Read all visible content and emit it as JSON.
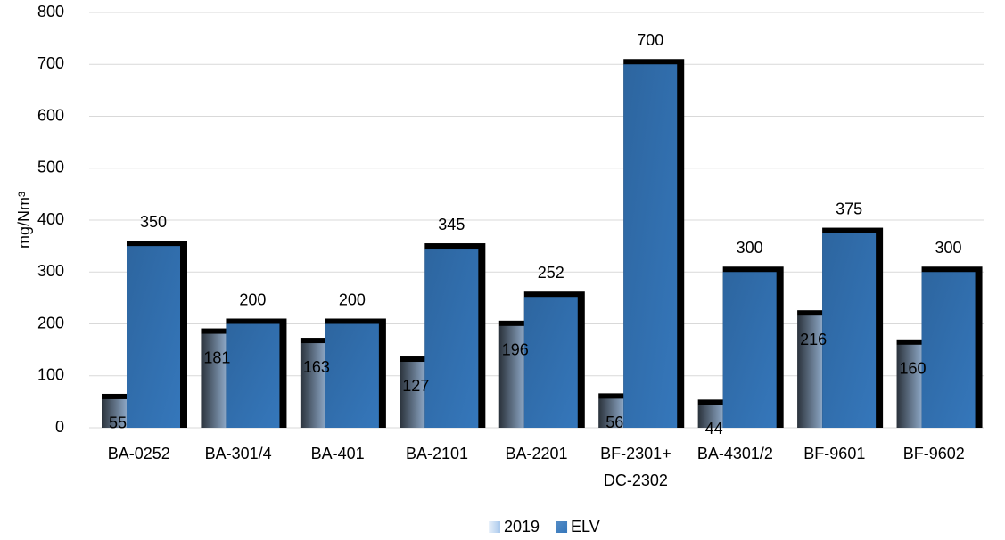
{
  "chart_data": {
    "type": "bar",
    "y_label": "mg/Nm³",
    "categories": [
      "BA-0252",
      "BA-301/4",
      "BA-401",
      "BA-2101",
      "BA-2201",
      "BF-2301+\nDC-2302",
      "BA-4301/2",
      "BF-9601",
      "BF-9602"
    ],
    "series": [
      {
        "name": "2019",
        "color": "#a9c8ec",
        "values": [
          55,
          181,
          163,
          127,
          196,
          56,
          44,
          216,
          160
        ]
      },
      {
        "name": "ELV",
        "color": "#3577bb",
        "values": [
          350,
          200,
          200,
          345,
          252,
          700,
          300,
          375,
          300
        ]
      }
    ],
    "ylim": [
      0,
      800
    ],
    "yticks": [
      0,
      100,
      200,
      300,
      400,
      500,
      600,
      700,
      800
    ],
    "grid": true,
    "legend": "bottom"
  }
}
